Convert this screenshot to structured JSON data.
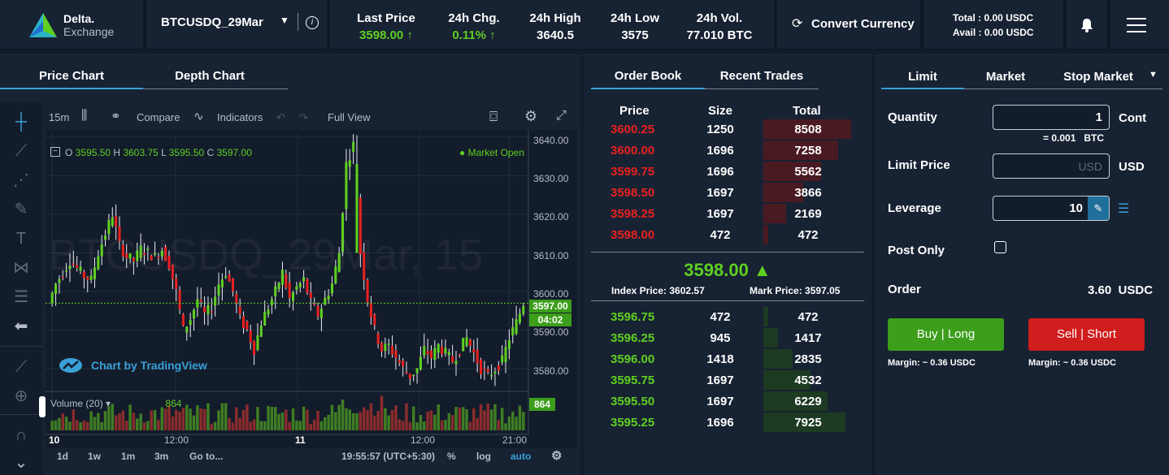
{
  "header": {
    "logo_line1": "Delta.",
    "logo_line2": "Exchange",
    "symbol": "BTCUSDQ_29Mar",
    "stats": [
      {
        "label": "Last Price",
        "value": "3598.00 ↑",
        "color": "green"
      },
      {
        "label": "24h Chg.",
        "value": "0.11% ↑",
        "color": "green"
      },
      {
        "label": "24h High",
        "value": "3640.5",
        "color": "white"
      },
      {
        "label": "24h Low",
        "value": "3575",
        "color": "white"
      },
      {
        "label": "24h Vol.",
        "value": "77.010 BTC",
        "color": "white"
      }
    ],
    "convert_label": "Convert Currency",
    "total": "Total : 0.00 USDC",
    "avail": "Avail : 0.00 USDC"
  },
  "chart_tabs": {
    "price_chart": "Price Chart",
    "depth_chart": "Depth Chart"
  },
  "chart_toolbar": {
    "interval": "15m",
    "compare": "Compare",
    "indicators": "Indicators",
    "full_view": "Full View"
  },
  "chart": {
    "ohlc_o_label": "O",
    "ohlc_o": "3595.50",
    "ohlc_h_label": "H",
    "ohlc_h": "3603.75",
    "ohlc_l_label": "L",
    "ohlc_l": "3595.50",
    "ohlc_c_label": "C",
    "ohlc_c": "3597.00",
    "market_status": "● Market Open",
    "watermark": "BTCUSDQ_29Mar, 15",
    "tradingview": "Chart by TradingView",
    "current_price_tag": "3597.00",
    "countdown_tag": "04:02",
    "volume_label": "Volume (20) ▾",
    "volume_value": "864",
    "volume_tag": "864",
    "price_ticks": [
      "3640.00",
      "3630.00",
      "3620.00",
      "3610.00",
      "3600.00",
      "3590.00",
      "3580.00"
    ],
    "time_ticks": [
      "10",
      "12:00",
      "11",
      "12:00",
      "21:00"
    ]
  },
  "chart_data": {
    "type": "candlestick",
    "ylim": [
      3575,
      3641
    ],
    "price_ticks": [
      3640,
      3630,
      3620,
      3610,
      3600,
      3590,
      3580
    ],
    "current_price": 3597.0,
    "high": 3640.5,
    "low": 3575,
    "close_series": [
      3597,
      3602,
      3605,
      3608,
      3606,
      3604,
      3603,
      3610,
      3615,
      3620,
      3612,
      3609,
      3608,
      3611,
      3610,
      3609,
      3611,
      3607,
      3600,
      3590,
      3593,
      3598,
      3594,
      3596,
      3602,
      3605,
      3600,
      3593,
      3590,
      3585,
      3592,
      3596,
      3600,
      3605,
      3598,
      3601,
      3603,
      3597,
      3594,
      3598,
      3602,
      3610,
      3633,
      3638,
      3610,
      3598,
      3590,
      3585,
      3586,
      3583,
      3580,
      3578,
      3580,
      3585,
      3583,
      3586,
      3584,
      3582,
      3585,
      3588,
      3584,
      3580,
      3578,
      3580,
      3582,
      3588,
      3592,
      3597
    ]
  },
  "chart_bottom": {
    "ranges": [
      "1d",
      "1w",
      "1m",
      "3m",
      "Go to..."
    ],
    "clock": "19:55:57 (UTC+5:30)",
    "percent": "%",
    "log": "log",
    "auto": "auto"
  },
  "orderbook": {
    "tab_orderbook": "Order Book",
    "tab_trades": "Recent Trades",
    "col_price": "Price",
    "col_size": "Size",
    "col_total": "Total",
    "asks": [
      {
        "price": "3600.25",
        "size": "1250",
        "total": "8508",
        "depth": 8508
      },
      {
        "price": "3600.00",
        "size": "1696",
        "total": "7258",
        "depth": 7258
      },
      {
        "price": "3599.75",
        "size": "1696",
        "total": "5562",
        "depth": 5562
      },
      {
        "price": "3598.50",
        "size": "1697",
        "total": "3866",
        "depth": 3866
      },
      {
        "price": "3598.25",
        "size": "1697",
        "total": "2169",
        "depth": 2169
      },
      {
        "price": "3598.00",
        "size": "472",
        "total": "472",
        "depth": 472
      }
    ],
    "last_price": "3598.00 ▲",
    "index_label": "Index Price:",
    "index_value": "3602.57",
    "mark_label": "Mark Price:",
    "mark_value": "3597.05",
    "bids": [
      {
        "price": "3596.75",
        "size": "472",
        "total": "472",
        "depth": 472
      },
      {
        "price": "3596.25",
        "size": "945",
        "total": "1417",
        "depth": 1417
      },
      {
        "price": "3596.00",
        "size": "1418",
        "total": "2835",
        "depth": 2835
      },
      {
        "price": "3595.75",
        "size": "1697",
        "total": "4532",
        "depth": 4532
      },
      {
        "price": "3595.50",
        "size": "1697",
        "total": "6229",
        "depth": 6229
      },
      {
        "price": "3595.25",
        "size": "1696",
        "total": "7925",
        "depth": 7925
      }
    ],
    "max_depth": 8508
  },
  "order_form": {
    "tab_limit": "Limit",
    "tab_market": "Market",
    "tab_stop": "Stop Market",
    "quantity_label": "Quantity",
    "quantity_value": "1",
    "quantity_unit": "Cont",
    "quantity_btc": "= 0.001   BTC",
    "limit_label": "Limit Price",
    "limit_placeholder": "USD",
    "limit_unit": "USD",
    "leverage_label": "Leverage",
    "leverage_value": "10",
    "post_only_label": "Post Only",
    "order_label": "Order",
    "order_value": "3.60  USDC",
    "buy_label": "Buy | Long",
    "sell_label": "Sell | Short",
    "buy_margin": "Margin:  ~ 0.36 USDC",
    "sell_margin": "Margin:  ~ 0.36 USDC"
  },
  "colors": {
    "green": "#5fcf21",
    "red": "#e8211f",
    "accent": "#3aa0d8",
    "buy_button": "#3c9e1b",
    "sell_button": "#d01d1d"
  }
}
